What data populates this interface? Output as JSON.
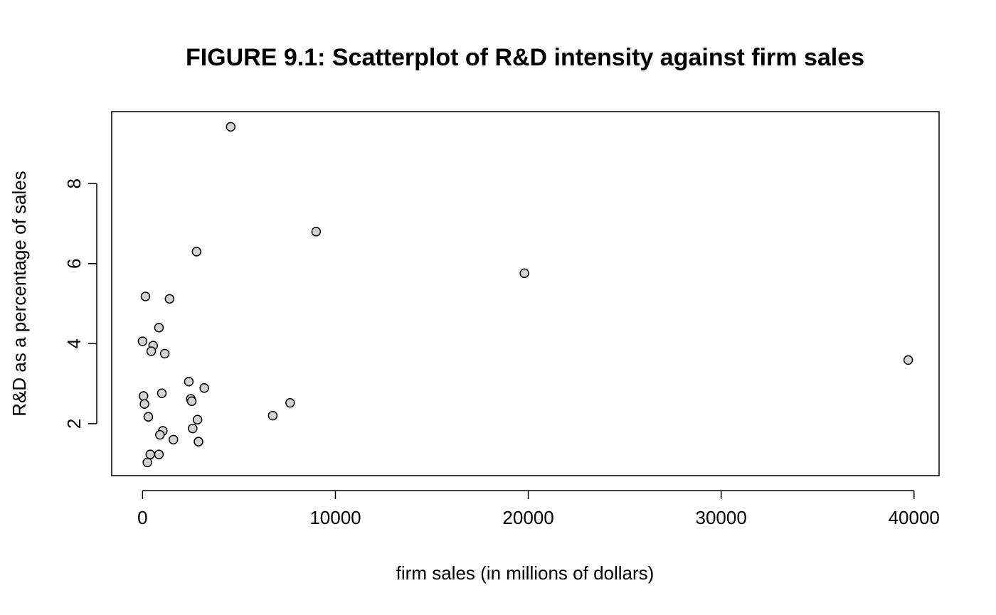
{
  "chart_data": {
    "type": "scatter",
    "title": "FIGURE 9.1: Scatterplot of R&D intensity against firm sales",
    "xlabel": "firm sales (in millions of dollars)",
    "ylabel": "R&D as a percentage of sales",
    "xlim": [
      -1600,
      41300
    ],
    "ylim": [
      0.7,
      9.8
    ],
    "x_ticks": [
      0,
      10000,
      20000,
      30000,
      40000
    ],
    "x_tick_labels": [
      "0",
      "10000",
      "20000",
      "30000",
      "40000"
    ],
    "y_ticks": [
      2,
      4,
      6,
      8
    ],
    "y_tick_labels": [
      "2",
      "4",
      "6",
      "8"
    ],
    "grid": false,
    "marker_fill": "#d3d3d3",
    "marker_edge": "#000000",
    "points": [
      {
        "x": 4570,
        "y": 9.42
      },
      {
        "x": 9000,
        "y": 6.8
      },
      {
        "x": 2800,
        "y": 6.3
      },
      {
        "x": 19800,
        "y": 5.76
      },
      {
        "x": 150,
        "y": 5.18
      },
      {
        "x": 1400,
        "y": 5.12
      },
      {
        "x": 850,
        "y": 4.4
      },
      {
        "x": 0,
        "y": 4.06
      },
      {
        "x": 550,
        "y": 3.95
      },
      {
        "x": 450,
        "y": 3.81
      },
      {
        "x": 1150,
        "y": 3.75
      },
      {
        "x": 39700,
        "y": 3.59
      },
      {
        "x": 2400,
        "y": 3.05
      },
      {
        "x": 3200,
        "y": 2.89
      },
      {
        "x": 1000,
        "y": 2.76
      },
      {
        "x": 50,
        "y": 2.69
      },
      {
        "x": 2500,
        "y": 2.62
      },
      {
        "x": 2550,
        "y": 2.56
      },
      {
        "x": 7650,
        "y": 2.52
      },
      {
        "x": 100,
        "y": 2.49
      },
      {
        "x": 6750,
        "y": 2.2
      },
      {
        "x": 300,
        "y": 2.17
      },
      {
        "x": 2850,
        "y": 2.1
      },
      {
        "x": 2600,
        "y": 1.88
      },
      {
        "x": 1050,
        "y": 1.82
      },
      {
        "x": 900,
        "y": 1.72
      },
      {
        "x": 1600,
        "y": 1.6
      },
      {
        "x": 2900,
        "y": 1.55
      },
      {
        "x": 400,
        "y": 1.23
      },
      {
        "x": 850,
        "y": 1.23
      },
      {
        "x": 250,
        "y": 1.03
      }
    ]
  }
}
